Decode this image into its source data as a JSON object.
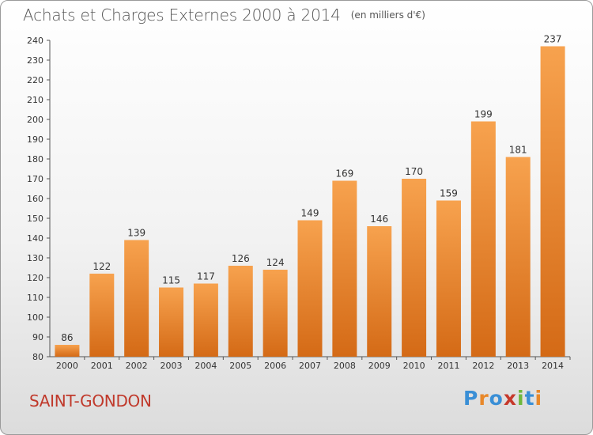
{
  "title": "Achats et Charges Externes 2000 à 2014",
  "unit": "(en milliers d'€)",
  "commune": "SAINT-GONDON",
  "logo": {
    "letters": [
      "P",
      "r",
      "o",
      "x",
      "i",
      "t",
      "i"
    ],
    "colors": [
      "#3a8fd6",
      "#e8882a",
      "#3a8fd6",
      "#c6392b",
      "#6fb83d",
      "#3a8fd6",
      "#e8882a"
    ]
  },
  "colors": {
    "bar_top": "#f7a24e",
    "bar_bottom": "#d46a16",
    "commune": "#c0392b"
  },
  "chart_data": {
    "type": "bar",
    "title": "Achats et Charges Externes 2000 à 2014",
    "subtitle": "(en milliers d'€)",
    "categories": [
      "2000",
      "2001",
      "2002",
      "2003",
      "2004",
      "2005",
      "2006",
      "2007",
      "2008",
      "2009",
      "2010",
      "2011",
      "2012",
      "2013",
      "2014"
    ],
    "values": [
      86,
      122,
      139,
      115,
      117,
      126,
      124,
      149,
      169,
      146,
      170,
      159,
      199,
      181,
      237
    ],
    "ylim": [
      80,
      240
    ],
    "yticks": [
      80,
      90,
      100,
      110,
      120,
      130,
      140,
      150,
      160,
      170,
      180,
      190,
      200,
      210,
      220,
      230,
      240
    ],
    "grid": false,
    "data_labels": true
  }
}
